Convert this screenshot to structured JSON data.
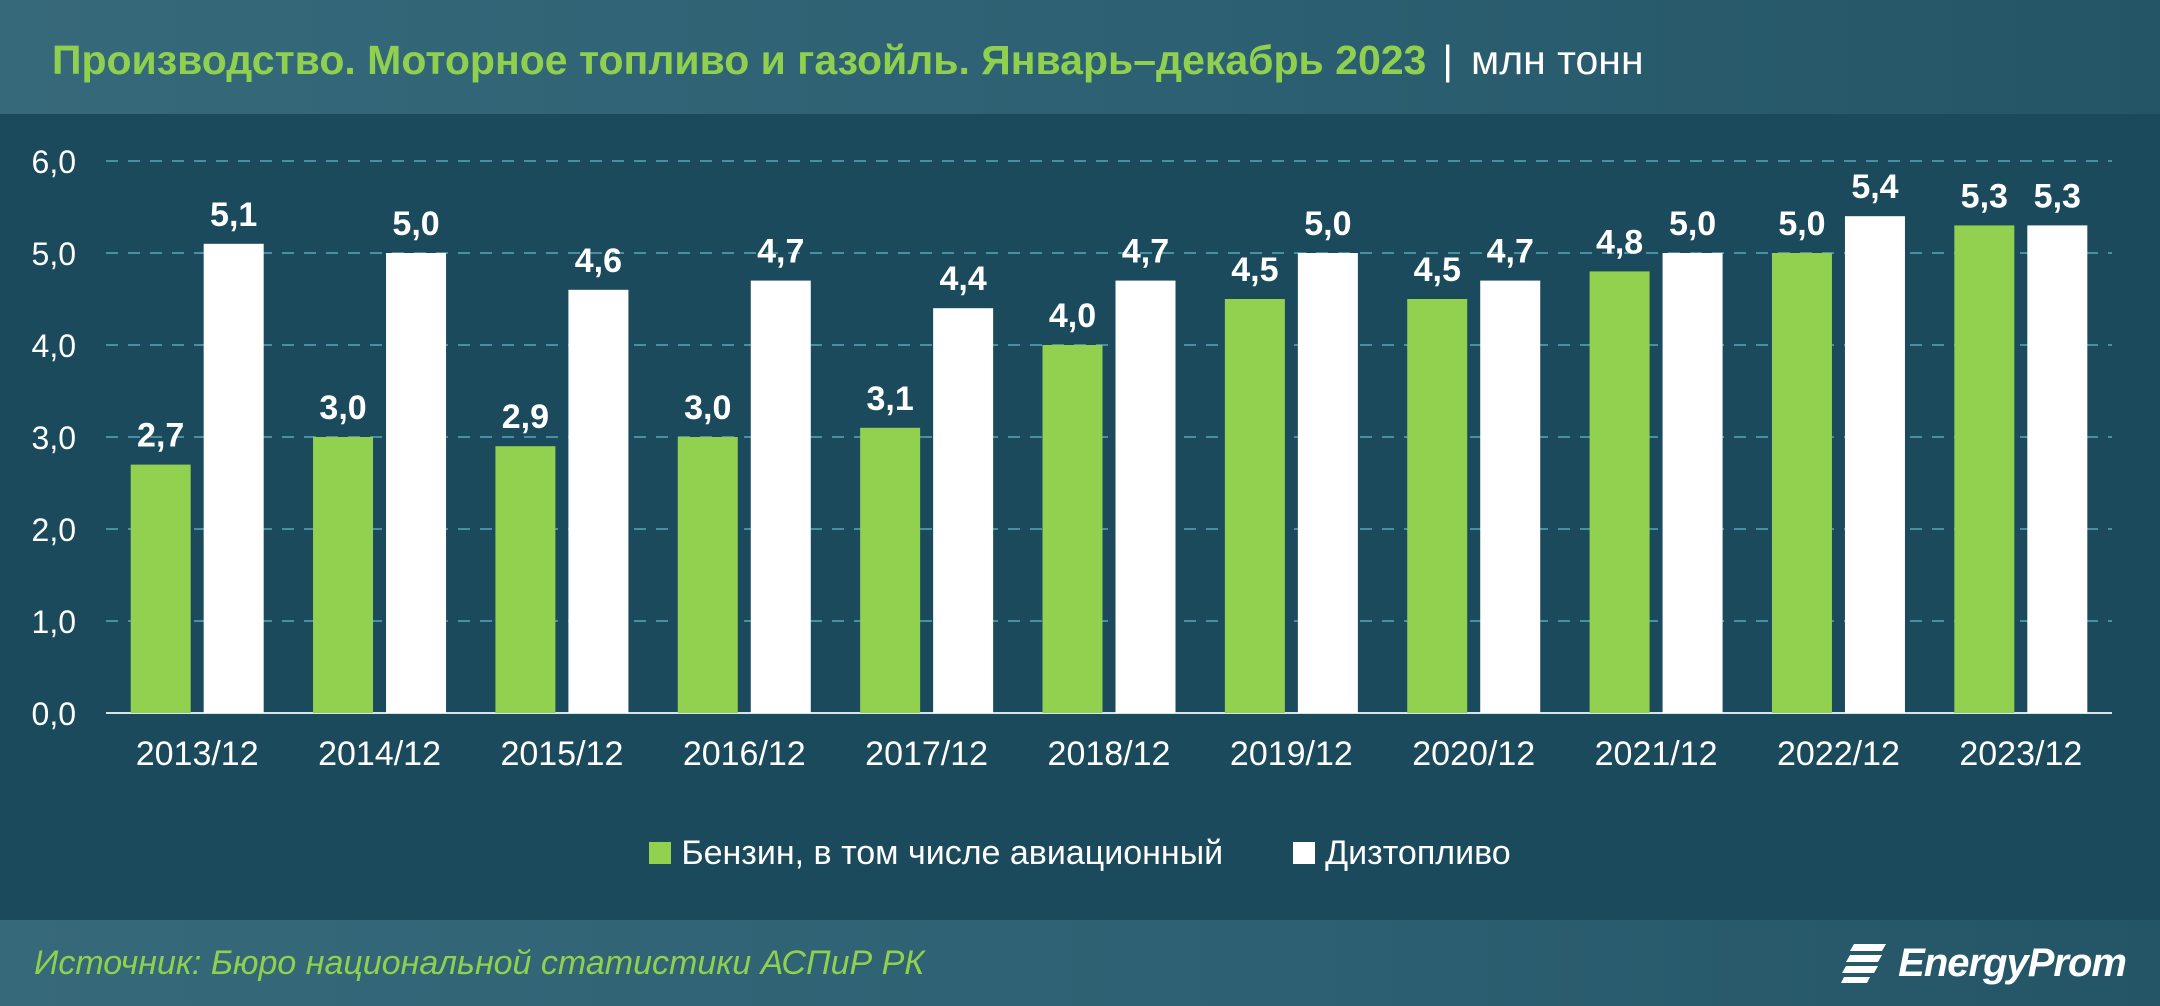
{
  "header": {
    "title": "Производство. Моторное топливо и газойль. Январь–декабрь 2023",
    "separator": "|",
    "unit": "млн тонн"
  },
  "colors": {
    "background": "#1a4a5c",
    "banner": "#2c6072",
    "accent_green": "#8fd14f",
    "white": "#ffffff",
    "grid": "#4a8fa3"
  },
  "chart_data": {
    "type": "bar",
    "categories": [
      "2013/12",
      "2014/12",
      "2015/12",
      "2016/12",
      "2017/12",
      "2018/12",
      "2019/12",
      "2020/12",
      "2021/12",
      "2022/12",
      "2023/12"
    ],
    "series": [
      {
        "name": "Бензин, в том числе авиационный",
        "color": "#92d050",
        "values": [
          2.7,
          3.0,
          2.9,
          3.0,
          3.1,
          4.0,
          4.5,
          4.5,
          4.8,
          5.0,
          5.3
        ],
        "labels": [
          "2,7",
          "3,0",
          "2,9",
          "3,0",
          "3,1",
          "4,0",
          "4,5",
          "4,5",
          "4,8",
          "5,0",
          "5,3"
        ]
      },
      {
        "name": "Дизтопливо",
        "color": "#ffffff",
        "values": [
          5.1,
          5.0,
          4.6,
          4.7,
          4.4,
          4.7,
          5.0,
          4.7,
          5.0,
          5.4,
          5.3
        ],
        "labels": [
          "5,1",
          "5,0",
          "4,6",
          "4,7",
          "4,4",
          "4,7",
          "5,0",
          "4,7",
          "5,0",
          "5,4",
          "5,3"
        ]
      }
    ],
    "ylim": [
      0,
      6
    ],
    "yticks": [
      0,
      1,
      2,
      3,
      4,
      5,
      6
    ],
    "ytick_labels": [
      "0,0",
      "1,0",
      "2,0",
      "3,0",
      "4,0",
      "5,0",
      "6,0"
    ],
    "grid": true,
    "legend_position": "bottom-center"
  },
  "legend": {
    "items": [
      {
        "label": "Бензин, в том числе авиационный",
        "color": "#92d050"
      },
      {
        "label": "Дизтопливо",
        "color": "#ffffff"
      }
    ]
  },
  "footer": {
    "source": "Источник: Бюро национальной статистики АСПиР РК",
    "logo_text": "EnergyProm",
    "logo_icon": "energyprom-logo-icon"
  }
}
